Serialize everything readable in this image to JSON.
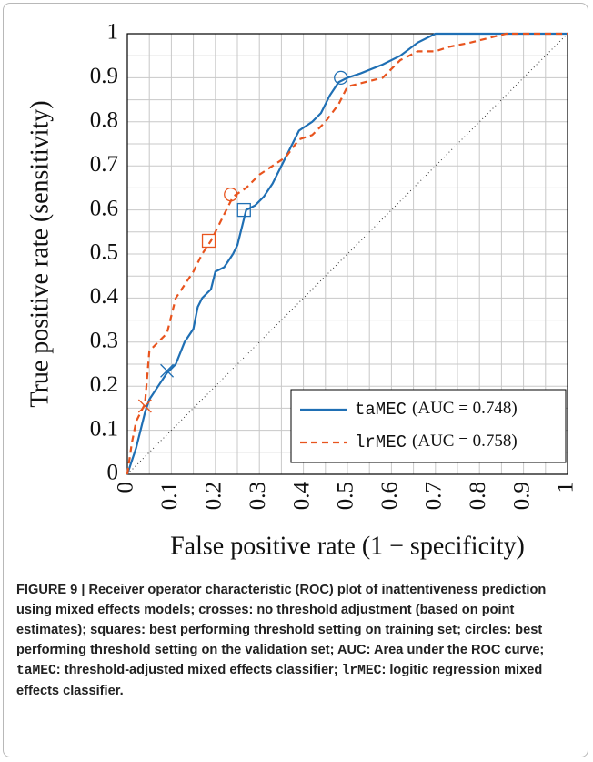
{
  "chart_data": {
    "type": "line",
    "xlabel": "False positive rate (1 − specificity)",
    "ylabel": "True positive rate (sensitivity)",
    "xlim": [
      0,
      1
    ],
    "ylim": [
      0,
      1
    ],
    "xticks": [
      0,
      0.1,
      0.2,
      0.3,
      0.4,
      0.5,
      0.6,
      0.7,
      0.8,
      0.9,
      1
    ],
    "yticks": [
      0,
      0.1,
      0.2,
      0.3,
      0.4,
      0.5,
      0.6,
      0.7,
      0.8,
      0.9,
      1
    ],
    "minor_ticks": [
      0.05,
      0.15,
      0.25,
      0.35,
      0.45,
      0.55,
      0.65,
      0.75,
      0.85,
      0.95
    ],
    "grid": true,
    "legend": "lower right",
    "series": [
      {
        "name": "taMEC",
        "annotation": "(AUC = 0.748)",
        "color": "#1f6fb4",
        "dash": "solid",
        "x": [
          0,
          0.01,
          0.02,
          0.03,
          0.04,
          0.05,
          0.07,
          0.09,
          0.11,
          0.13,
          0.15,
          0.16,
          0.17,
          0.19,
          0.2,
          0.22,
          0.24,
          0.25,
          0.26,
          0.27,
          0.29,
          0.31,
          0.33,
          0.35,
          0.37,
          0.39,
          0.42,
          0.44,
          0.46,
          0.48,
          0.5,
          0.53,
          0.58,
          0.62,
          0.66,
          0.7,
          0.75,
          1
        ],
        "y": [
          0,
          0.03,
          0.06,
          0.1,
          0.14,
          0.17,
          0.2,
          0.23,
          0.25,
          0.3,
          0.33,
          0.38,
          0.4,
          0.42,
          0.46,
          0.47,
          0.5,
          0.52,
          0.56,
          0.6,
          0.61,
          0.63,
          0.66,
          0.7,
          0.74,
          0.78,
          0.8,
          0.82,
          0.86,
          0.89,
          0.9,
          0.91,
          0.93,
          0.95,
          0.98,
          1,
          1,
          1
        ],
        "markers": [
          {
            "shape": "cross",
            "x": 0.09,
            "y": 0.235
          },
          {
            "shape": "square",
            "x": 0.265,
            "y": 0.6
          },
          {
            "shape": "circle",
            "x": 0.485,
            "y": 0.9
          }
        ]
      },
      {
        "name": "lrMEC",
        "annotation": "(AUC = 0.758)",
        "color": "#e8541e",
        "dash": "dashed",
        "x": [
          0,
          0.01,
          0.02,
          0.04,
          0.05,
          0.07,
          0.09,
          0.11,
          0.13,
          0.15,
          0.17,
          0.19,
          0.21,
          0.24,
          0.27,
          0.3,
          0.33,
          0.36,
          0.39,
          0.42,
          0.45,
          0.48,
          0.5,
          0.54,
          0.58,
          0.62,
          0.66,
          0.7,
          0.73,
          0.78,
          0.82,
          0.86,
          1
        ],
        "y": [
          0,
          0.07,
          0.12,
          0.16,
          0.28,
          0.3,
          0.32,
          0.4,
          0.43,
          0.46,
          0.5,
          0.53,
          0.57,
          0.63,
          0.65,
          0.68,
          0.7,
          0.72,
          0.76,
          0.77,
          0.8,
          0.84,
          0.88,
          0.89,
          0.9,
          0.94,
          0.96,
          0.96,
          0.97,
          0.98,
          0.99,
          1,
          1
        ],
        "markers": [
          {
            "shape": "cross",
            "x": 0.04,
            "y": 0.155
          },
          {
            "shape": "square",
            "x": 0.185,
            "y": 0.53
          },
          {
            "shape": "circle",
            "x": 0.235,
            "y": 0.635
          }
        ]
      }
    ]
  },
  "caption": [
    {
      "text": "FIGURE 9 | Receiver operator characteristic (ROC) plot of inattentiveness prediction using mixed effects models; crosses: no threshold adjustment (based on point estimates); squares: best performing threshold setting on training set; circles: best performing threshold setting on the validation set; AUC: Area under the ROC curve; ",
      "mono": false
    },
    {
      "text": "taMEC",
      "mono": true
    },
    {
      "text": ": threshold-adjusted mixed effects classifier; ",
      "mono": false
    },
    {
      "text": "lrMEC",
      "mono": true
    },
    {
      "text": ": logitic regression mixed effects classifier.",
      "mono": false
    }
  ]
}
